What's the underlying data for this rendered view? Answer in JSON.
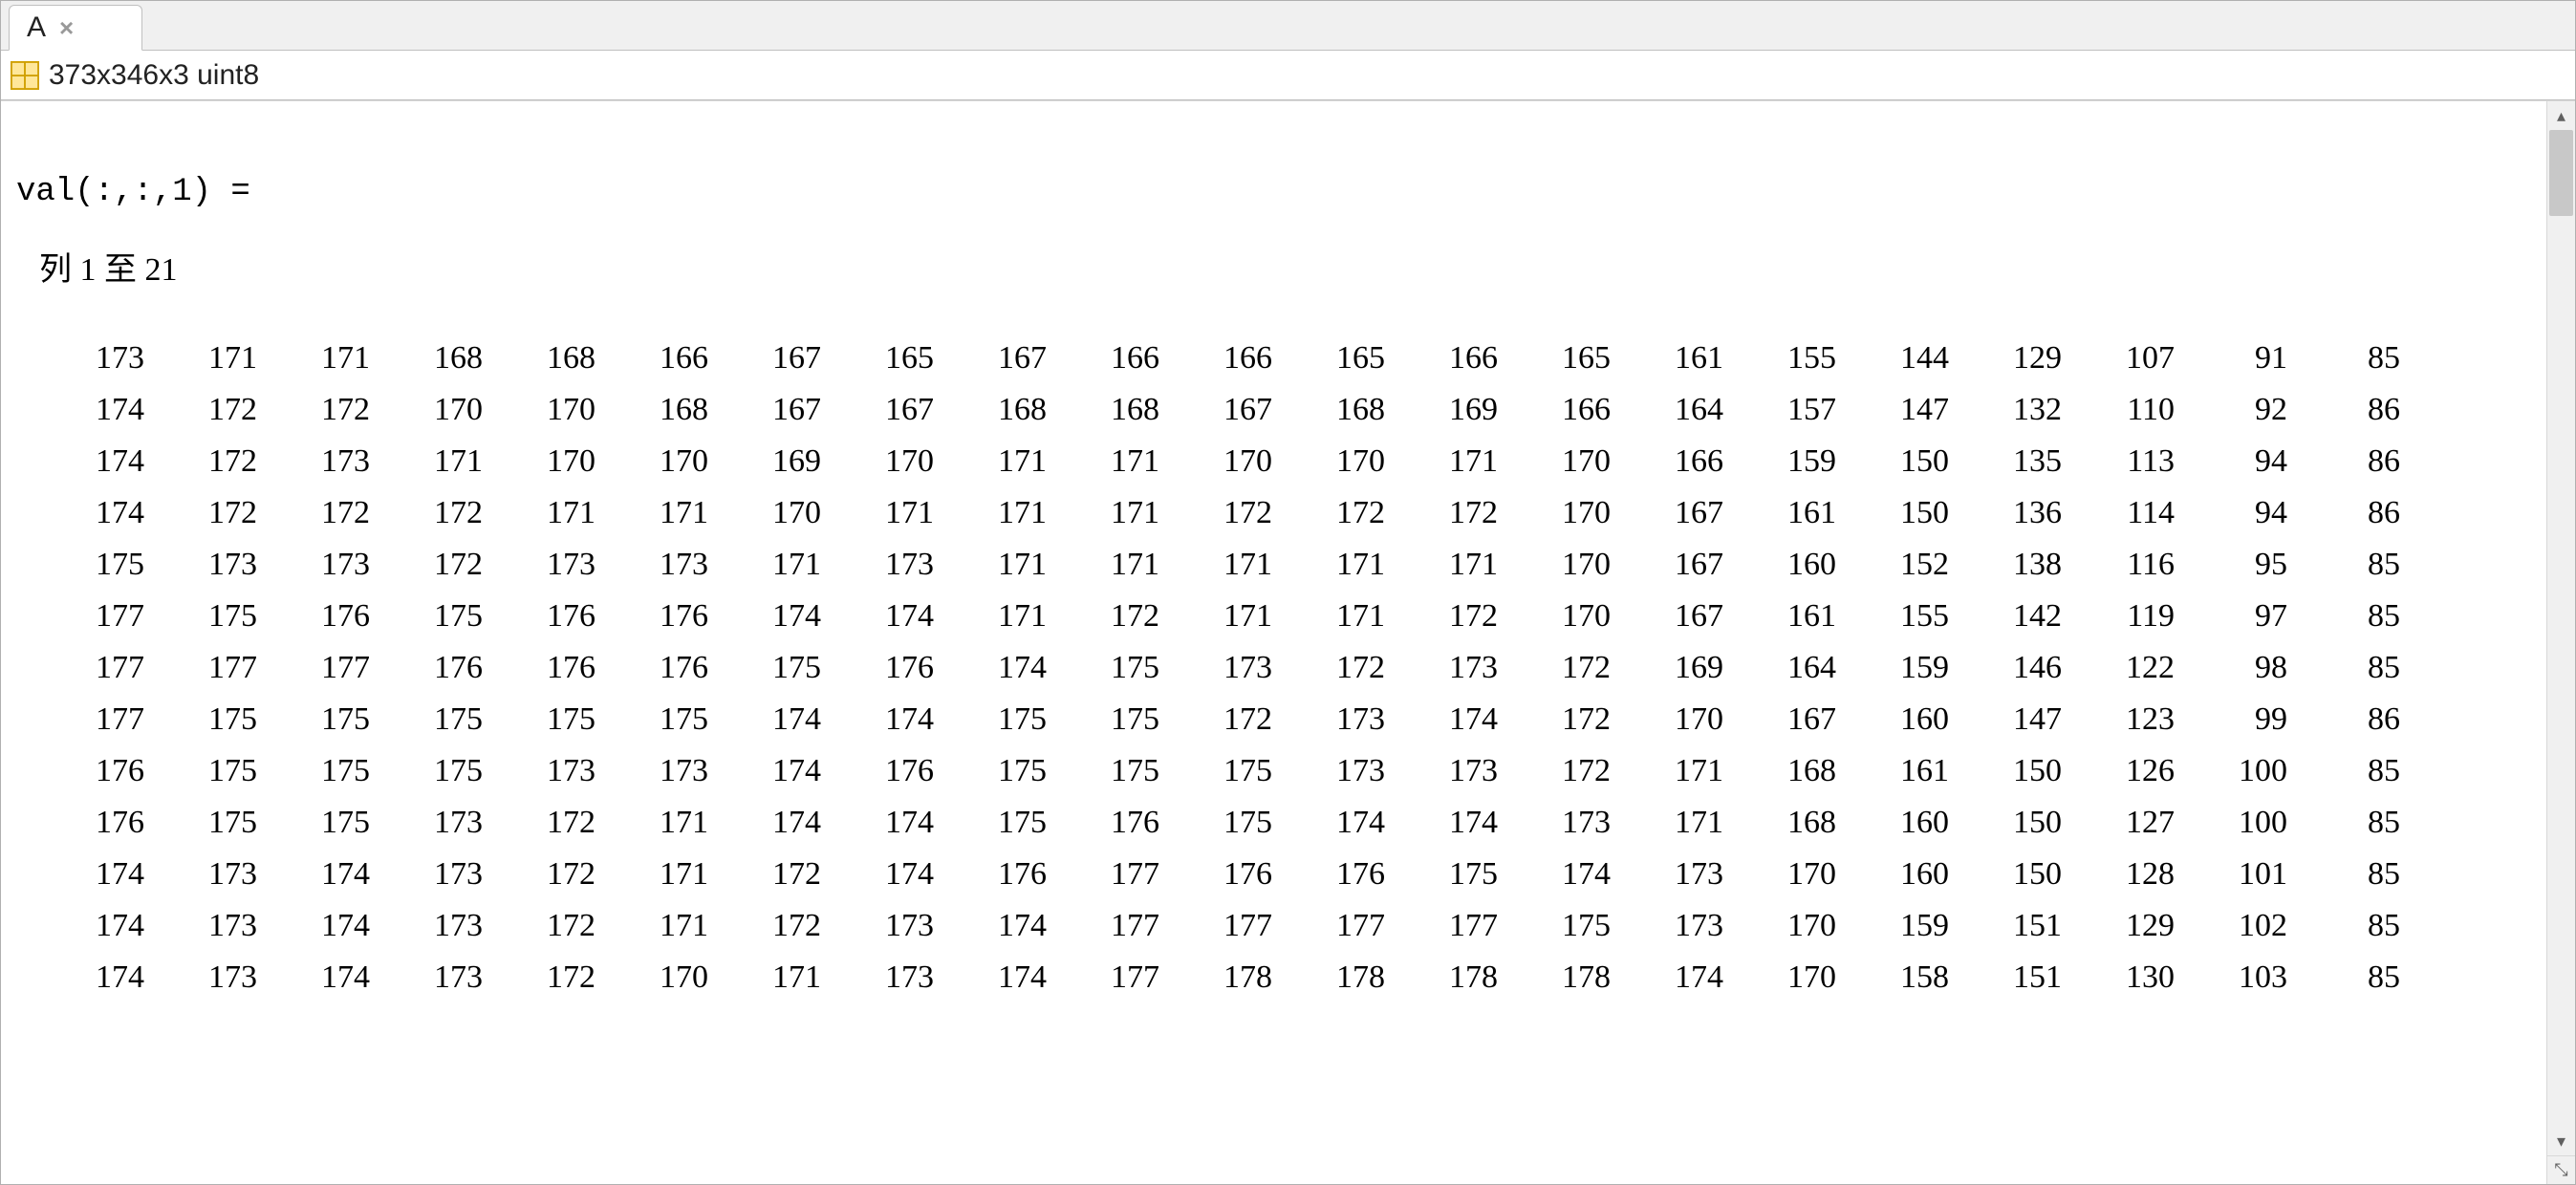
{
  "tab": {
    "label": "A",
    "close_glyph": "×"
  },
  "info": {
    "dimensions": "373x346x3 uint8"
  },
  "slice": {
    "header": "val(:,:,1) =",
    "cols_label": "列 1 至 21"
  },
  "matrix": {
    "num_cols": 21,
    "rows": [
      [
        173,
        171,
        171,
        168,
        168,
        166,
        167,
        165,
        167,
        166,
        166,
        165,
        166,
        165,
        161,
        155,
        144,
        129,
        107,
        91,
        85
      ],
      [
        174,
        172,
        172,
        170,
        170,
        168,
        167,
        167,
        168,
        168,
        167,
        168,
        169,
        166,
        164,
        157,
        147,
        132,
        110,
        92,
        86
      ],
      [
        174,
        172,
        173,
        171,
        170,
        170,
        169,
        170,
        171,
        171,
        170,
        170,
        171,
        170,
        166,
        159,
        150,
        135,
        113,
        94,
        86
      ],
      [
        174,
        172,
        172,
        172,
        171,
        171,
        170,
        171,
        171,
        171,
        172,
        172,
        172,
        170,
        167,
        161,
        150,
        136,
        114,
        94,
        86
      ],
      [
        175,
        173,
        173,
        172,
        173,
        173,
        171,
        173,
        171,
        171,
        171,
        171,
        171,
        170,
        167,
        160,
        152,
        138,
        116,
        95,
        85
      ],
      [
        177,
        175,
        176,
        175,
        176,
        176,
        174,
        174,
        171,
        172,
        171,
        171,
        172,
        170,
        167,
        161,
        155,
        142,
        119,
        97,
        85
      ],
      [
        177,
        177,
        177,
        176,
        176,
        176,
        175,
        176,
        174,
        175,
        173,
        172,
        173,
        172,
        169,
        164,
        159,
        146,
        122,
        98,
        85
      ],
      [
        177,
        175,
        175,
        175,
        175,
        175,
        174,
        174,
        175,
        175,
        172,
        173,
        174,
        172,
        170,
        167,
        160,
        147,
        123,
        99,
        86
      ],
      [
        176,
        175,
        175,
        175,
        173,
        173,
        174,
        176,
        175,
        175,
        175,
        173,
        173,
        172,
        171,
        168,
        161,
        150,
        126,
        100,
        85
      ],
      [
        176,
        175,
        175,
        173,
        172,
        171,
        174,
        174,
        175,
        176,
        175,
        174,
        174,
        173,
        171,
        168,
        160,
        150,
        127,
        100,
        85
      ],
      [
        174,
        173,
        174,
        173,
        172,
        171,
        172,
        174,
        176,
        177,
        176,
        176,
        175,
        174,
        173,
        170,
        160,
        150,
        128,
        101,
        85
      ],
      [
        174,
        173,
        174,
        173,
        172,
        171,
        172,
        173,
        174,
        177,
        177,
        177,
        177,
        175,
        173,
        170,
        159,
        151,
        129,
        102,
        85
      ],
      [
        174,
        173,
        174,
        173,
        172,
        170,
        171,
        173,
        174,
        177,
        178,
        178,
        178,
        178,
        174,
        170,
        158,
        151,
        130,
        103,
        85
      ]
    ]
  },
  "icons": {
    "scroll_up": "▴",
    "scroll_down": "▾",
    "corner": "⤡"
  },
  "colors": {
    "tab_bg": "#f0f0f0",
    "border": "#c0c0c0",
    "text": "#000000",
    "icon_border": "#d0a000",
    "icon_fill": "#ffe79a"
  }
}
